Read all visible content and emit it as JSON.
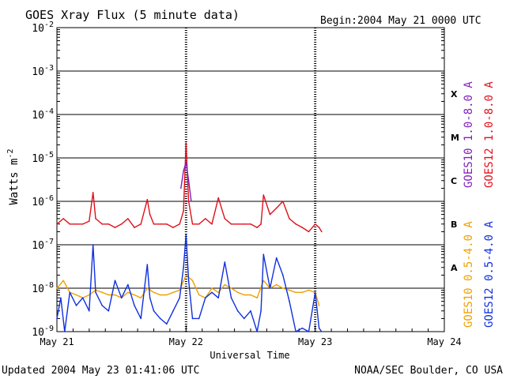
{
  "title": "GOES Xray Flux (5 minute data)",
  "begin_label": "Begin:",
  "begin_date": "2004 May 21 0000 UTC",
  "updated": "Updated 2004 May 23 01:41:06 UTC",
  "credit": "NOAA/SEC Boulder, CO USA",
  "colors": {
    "goes10_long": "#7f1fbf",
    "goes12_long": "#e0101a",
    "goes10_short": "#f0a000",
    "goes12_short": "#1030e0",
    "grid": "#000000"
  },
  "chart_data": {
    "type": "line",
    "xlabel": "Universal Time",
    "ylabel": "Watts m",
    "ylabel_sup": "-2",
    "yscale": "log",
    "ylim": [
      1e-09,
      0.01
    ],
    "xlim": [
      0,
      3
    ],
    "x_unit": "days since 2004 May 21 00:00 UTC",
    "x_ticks": [
      {
        "pos": 0,
        "label": "May 21"
      },
      {
        "pos": 1,
        "label": "May 22"
      },
      {
        "pos": 2,
        "label": "May 23"
      },
      {
        "pos": 3,
        "label": "May 24"
      }
    ],
    "y_ticks": [
      {
        "exp": -2,
        "label": "-2"
      },
      {
        "exp": -3,
        "label": "-3"
      },
      {
        "exp": -4,
        "label": "-4"
      },
      {
        "exp": -5,
        "label": "-5"
      },
      {
        "exp": -6,
        "label": "-6"
      },
      {
        "exp": -7,
        "label": "-7"
      },
      {
        "exp": -8,
        "label": "-8"
      },
      {
        "exp": -9,
        "label": "-9"
      }
    ],
    "flare_classes": [
      {
        "label": "X",
        "level": 0.0003
      },
      {
        "label": "M",
        "level": 3e-05
      },
      {
        "label": "C",
        "level": 3e-06
      },
      {
        "label": "B",
        "level": 3e-07
      },
      {
        "label": "A",
        "level": 3e-08
      }
    ],
    "grid": "horizontal at each decade; dotted verticals at day boundaries",
    "series": [
      {
        "name": "GOES12 1.0-8.0 A",
        "color": "#e0101a",
        "x": [
          0,
          0.05,
          0.1,
          0.15,
          0.2,
          0.25,
          0.28,
          0.3,
          0.35,
          0.4,
          0.45,
          0.5,
          0.55,
          0.6,
          0.65,
          0.7,
          0.72,
          0.75,
          0.8,
          0.85,
          0.9,
          0.95,
          0.98,
          1.0,
          1.02,
          1.05,
          1.1,
          1.15,
          1.2,
          1.25,
          1.3,
          1.35,
          1.4,
          1.45,
          1.5,
          1.55,
          1.58,
          1.6,
          1.65,
          1.7,
          1.75,
          1.8,
          1.85,
          1.9,
          1.95,
          2.0,
          2.03,
          2.05
        ],
        "y": [
          3e-07,
          4e-07,
          3e-07,
          3e-07,
          3e-07,
          3.5e-07,
          1.6e-06,
          4e-07,
          3e-07,
          3e-07,
          2.5e-07,
          3e-07,
          4e-07,
          2.5e-07,
          3e-07,
          1.1e-06,
          5e-07,
          3e-07,
          3e-07,
          3e-07,
          2.5e-07,
          3e-07,
          6e-07,
          2.2e-05,
          1e-06,
          3e-07,
          3e-07,
          4e-07,
          3e-07,
          1.2e-06,
          4e-07,
          3e-07,
          3e-07,
          3e-07,
          3e-07,
          2.5e-07,
          3e-07,
          1.4e-06,
          5e-07,
          7e-07,
          1e-06,
          4e-07,
          3e-07,
          2.5e-07,
          2e-07,
          3e-07,
          2.5e-07,
          2e-07
        ]
      },
      {
        "name": "GOES10 1.0-8.0 A",
        "color": "#7f1fbf",
        "x": [
          0.96,
          0.98,
          1.0,
          1.02,
          1.04
        ],
        "y": [
          2e-06,
          5e-06,
          8e-06,
          3e-06,
          1e-06
        ]
      },
      {
        "name": "GOES12 0.5-4.0 A",
        "color": "#1030e0",
        "x": [
          0,
          0.03,
          0.06,
          0.1,
          0.15,
          0.2,
          0.25,
          0.28,
          0.3,
          0.35,
          0.4,
          0.45,
          0.5,
          0.55,
          0.6,
          0.65,
          0.7,
          0.72,
          0.75,
          0.8,
          0.85,
          0.9,
          0.95,
          0.98,
          1.0,
          1.02,
          1.05,
          1.1,
          1.15,
          1.2,
          1.25,
          1.3,
          1.35,
          1.4,
          1.45,
          1.5,
          1.55,
          1.58,
          1.6,
          1.65,
          1.7,
          1.75,
          1.8,
          1.85,
          1.9,
          1.95,
          2.0,
          2.03,
          2.05
        ],
        "y": [
          2e-09,
          6e-09,
          1e-09,
          8e-09,
          4e-09,
          6e-09,
          3e-09,
          1e-07,
          8e-09,
          4e-09,
          3e-09,
          1.5e-08,
          6e-09,
          1.2e-08,
          4e-09,
          2e-09,
          3.5e-08,
          6e-09,
          3e-09,
          2e-09,
          1.5e-09,
          3e-09,
          6e-09,
          3e-08,
          1.7e-07,
          1.5e-08,
          2e-09,
          2e-09,
          6e-09,
          8e-09,
          6e-09,
          4e-08,
          6e-09,
          3e-09,
          2e-09,
          3e-09,
          1e-09,
          3e-09,
          6e-08,
          1e-08,
          5e-08,
          2e-08,
          5e-09,
          1e-09,
          1.2e-09,
          1e-09,
          8e-09,
          1.2e-09,
          1e-09
        ]
      },
      {
        "name": "GOES10 0.5-4.0 A",
        "color": "#f0a000",
        "x": [
          0,
          0.05,
          0.1,
          0.15,
          0.2,
          0.25,
          0.3,
          0.35,
          0.4,
          0.45,
          0.5,
          0.55,
          0.6,
          0.65,
          0.7,
          0.75,
          0.8,
          0.85,
          0.9,
          0.95,
          1.0,
          1.05,
          1.1,
          1.15,
          1.2,
          1.25,
          1.3,
          1.35,
          1.4,
          1.45,
          1.5,
          1.55,
          1.6,
          1.65,
          1.7,
          1.75,
          1.8,
          1.85,
          1.9,
          1.95,
          2.0,
          2.03
        ],
        "y": [
          1e-08,
          1.5e-08,
          8e-09,
          7e-09,
          6e-09,
          7e-09,
          9e-09,
          8e-09,
          7e-09,
          7e-09,
          6e-09,
          8e-09,
          7e-09,
          6e-09,
          1e-08,
          8e-09,
          7e-09,
          7e-09,
          8e-09,
          9e-09,
          2e-08,
          1.5e-08,
          7e-09,
          6e-09,
          1e-08,
          8e-09,
          1.2e-08,
          1e-08,
          8e-09,
          7e-09,
          7e-09,
          6e-09,
          1.5e-08,
          1e-08,
          1.2e-08,
          1e-08,
          9e-09,
          8e-09,
          8e-09,
          9e-09,
          8e-09,
          4e-09
        ]
      }
    ]
  }
}
